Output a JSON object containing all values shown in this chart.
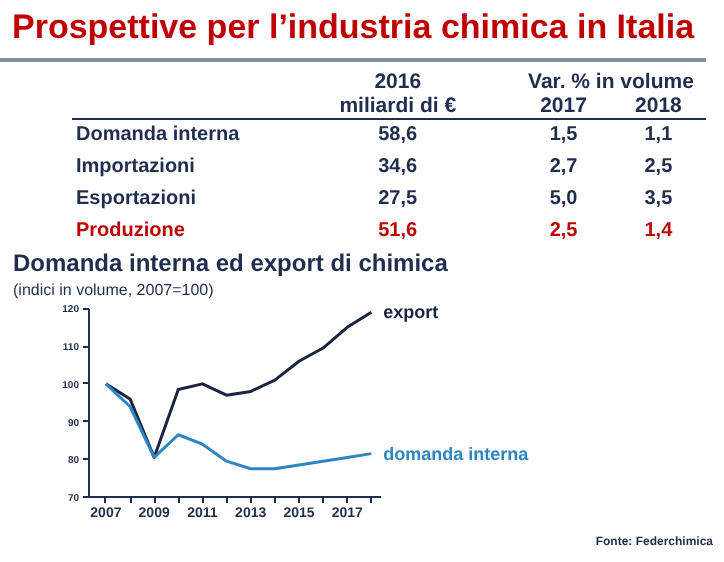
{
  "chart_data": [
    {
      "type": "other",
      "title": "Prospettive per l’industria chimica in Italia",
      "categories": [
        "Domanda interna",
        "Importazioni",
        "Esportazioni",
        "Produzione"
      ],
      "colors": [
        "#1f2d4e",
        "#1f2d4e",
        "#1f2d4e",
        "#c00000"
      ],
      "annotations": [
        "miliardi di €",
        "Var. % in volume"
      ],
      "series": [
        {
          "name": "2016",
          "values": [
            58.6,
            34.6,
            27.5,
            51.6
          ],
          "value_labels": [
            "58,6",
            "34,6",
            "27,5",
            "51,6"
          ]
        },
        {
          "name": "2017",
          "values": [
            1.5,
            2.7,
            5.0,
            2.5
          ],
          "value_labels": [
            "1,5",
            "2,7",
            "5,0",
            "2,5"
          ]
        },
        {
          "name": "2018",
          "values": [
            1.1,
            2.5,
            3.5,
            1.4
          ],
          "value_labels": [
            "1,1",
            "2,5",
            "3,5",
            "1,4"
          ]
        }
      ]
    },
    {
      "type": "line",
      "title": "Domanda interna ed export di chimica",
      "subtitle": "(indici in volume, 2007=100)",
      "x": [
        2007,
        2008,
        2009,
        2010,
        2011,
        2012,
        2013,
        2014,
        2015,
        2016,
        2017,
        2018
      ],
      "xlim": [
        2006.3,
        2018.4
      ],
      "xticks": [
        2007,
        {
          "value": 2008,
          "label": null
        },
        2009,
        {
          "value": 2010,
          "label": null
        },
        2011,
        {
          "value": 2012,
          "label": null
        },
        2013,
        {
          "value": 2014,
          "label": null
        },
        2015,
        {
          "value": 2016,
          "label": null
        },
        2017,
        {
          "value": 2018,
          "label": null
        }
      ],
      "ylim": [
        70,
        120
      ],
      "yticks": [
        70,
        80,
        90,
        100,
        110,
        120
      ],
      "grid": false,
      "annotations": [
        "Fonte: Federchimica"
      ],
      "series": [
        {
          "name": "export",
          "color": "#1a2440",
          "values": [
            100,
            96,
            80.5,
            98.5,
            100,
            97,
            98,
            101,
            106,
            109.5,
            115,
            119
          ]
        },
        {
          "name": "domanda interna",
          "color": "#2e86c1",
          "values": [
            100,
            94,
            80.5,
            86.5,
            84,
            79.5,
            77.5,
            77.5,
            78.5,
            79.5,
            80.5,
            81.5
          ]
        }
      ]
    }
  ]
}
